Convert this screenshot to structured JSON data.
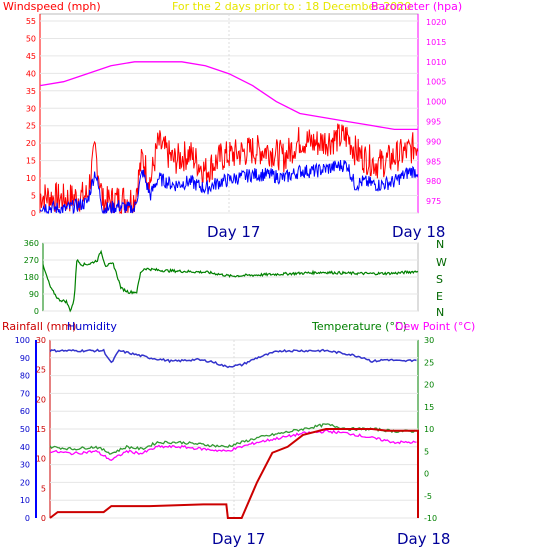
{
  "top_panel": {
    "left_label": "Windspeed (mph)",
    "center_label": "For the 2 days prior to : 18 December 2020",
    "right_label": "Barometer (hpa)",
    "left_ticks": [
      "0",
      "5",
      "10",
      "15",
      "20",
      "25",
      "30",
      "35",
      "40",
      "45",
      "50",
      "55"
    ],
    "right_ticks": [
      "975",
      "980",
      "985",
      "990",
      "995",
      "1000",
      "1005",
      "1010",
      "1015",
      "1020"
    ],
    "day_labels": [
      "Day 17",
      "Day 18"
    ]
  },
  "middle_panel": {
    "left_ticks": [
      "0",
      "90",
      "180",
      "270",
      "360"
    ],
    "compass": [
      "N",
      "W",
      "S",
      "E",
      "N"
    ]
  },
  "bottom_panel": {
    "rainfall_label": "Rainfall (mm)",
    "humidity_label": "Humidity",
    "temperature_label": "Temperature (°C)",
    "dewpoint_label": "Dew Point (°C)",
    "humidity_ticks": [
      "0",
      "10",
      "20",
      "30",
      "40",
      "50",
      "60",
      "70",
      "80",
      "90",
      "100"
    ],
    "rain_ticks": [
      "0",
      "5",
      "10",
      "15",
      "20",
      "25",
      "30"
    ],
    "temp_ticks": [
      "-10",
      "-5",
      "0",
      "5",
      "10",
      "15",
      "20",
      "25",
      "30"
    ],
    "day_labels": [
      "Day 17",
      "Day 18"
    ]
  },
  "colors": {
    "wind_speed": "#ff0000",
    "wind_gust_avg": "#0000ff",
    "barometer": "#ff00ff",
    "direction": "#008000",
    "humidity": "#3333cc",
    "temperature": "#339933",
    "dewpoint": "#ff00ff",
    "rainfall": "#cc0000",
    "left_axis_text": "#ff0000",
    "title_text": "#ffff00"
  },
  "chart_data": [
    {
      "type": "line",
      "x_range_hours": [
        0,
        48
      ],
      "series": [
        {
          "key": "gust",
          "values": [
            [
              0,
              5
            ],
            [
              3,
              4
            ],
            [
              6,
              5
            ],
            [
              7,
              18
            ],
            [
              8,
              3
            ],
            [
              10,
              4
            ],
            [
              12,
              4
            ],
            [
              13,
              16
            ],
            [
              14,
              9
            ],
            [
              15,
              20
            ],
            [
              17,
              15
            ],
            [
              19,
              17
            ],
            [
              21,
              12
            ],
            [
              23,
              16
            ],
            [
              25,
              17
            ],
            [
              27,
              18
            ],
            [
              29,
              18
            ],
            [
              31,
              16
            ],
            [
              33,
              21
            ],
            [
              35,
              20
            ],
            [
              37,
              21
            ],
            [
              39,
              22
            ],
            [
              40,
              18
            ],
            [
              41,
              16
            ],
            [
              43,
              14
            ],
            [
              45,
              16
            ],
            [
              47,
              18
            ],
            [
              48,
              20
            ]
          ]
        },
        {
          "key": "avg",
          "values": [
            [
              0,
              2
            ],
            [
              3,
              1
            ],
            [
              6,
              3
            ],
            [
              7,
              12
            ],
            [
              8,
              1
            ],
            [
              10,
              2
            ],
            [
              12,
              1
            ],
            [
              13,
              12
            ],
            [
              14,
              5
            ],
            [
              15,
              10
            ],
            [
              17,
              8
            ],
            [
              19,
              9
            ],
            [
              21,
              7
            ],
            [
              23,
              9
            ],
            [
              25,
              10
            ],
            [
              27,
              11
            ],
            [
              29,
              11
            ],
            [
              31,
              10
            ],
            [
              33,
              12
            ],
            [
              35,
              12
            ],
            [
              37,
              13
            ],
            [
              39,
              14
            ],
            [
              40,
              8
            ],
            [
              41,
              9
            ],
            [
              43,
              8
            ],
            [
              45,
              9
            ],
            [
              47,
              12
            ],
            [
              48,
              12
            ]
          ]
        },
        {
          "key": "baro",
          "values": [
            [
              0,
              1004
            ],
            [
              3,
              1005
            ],
            [
              6,
              1007
            ],
            [
              9,
              1009
            ],
            [
              12,
              1010
            ],
            [
              15,
              1010
            ],
            [
              18,
              1010
            ],
            [
              21,
              1009
            ],
            [
              24,
              1007
            ],
            [
              27,
              1004
            ],
            [
              30,
              1000
            ],
            [
              33,
              997
            ],
            [
              36,
              996
            ],
            [
              39,
              995
            ],
            [
              42,
              994
            ],
            [
              45,
              993
            ],
            [
              48,
              993
            ]
          ]
        }
      ],
      "ylim_left": [
        0,
        57
      ],
      "ylim_right": [
        972,
        1022
      ]
    },
    {
      "type": "line",
      "x_range_hours": [
        0,
        48
      ],
      "series": [
        {
          "key": "dir",
          "values": [
            [
              0,
              240
            ],
            [
              1,
              120
            ],
            [
              2,
              60
            ],
            [
              3,
              50
            ],
            [
              3.5,
              0
            ],
            [
              4,
              60
            ],
            [
              4.3,
              270
            ],
            [
              5,
              245
            ],
            [
              6,
              250
            ],
            [
              7,
              270
            ],
            [
              7.4,
              320
            ],
            [
              8,
              240
            ],
            [
              9,
              250
            ],
            [
              10,
              120
            ],
            [
              11,
              100
            ],
            [
              12,
              100
            ],
            [
              12.5,
              205
            ],
            [
              13,
              225
            ],
            [
              15,
              215
            ],
            [
              18,
              210
            ],
            [
              21,
              205
            ],
            [
              24,
              185
            ],
            [
              27,
              190
            ],
            [
              30,
              195
            ],
            [
              33,
              200
            ],
            [
              36,
              205
            ],
            [
              39,
              200
            ],
            [
              42,
              198
            ],
            [
              45,
              200
            ],
            [
              48,
              210
            ]
          ]
        }
      ],
      "ylim": [
        0,
        360
      ]
    },
    {
      "type": "line",
      "x_range_hours": [
        0,
        48
      ],
      "series": [
        {
          "key": "humidity",
          "values": [
            [
              0,
              94
            ],
            [
              7,
              94
            ],
            [
              8,
              87
            ],
            [
              9,
              94
            ],
            [
              11,
              92
            ],
            [
              13,
              90
            ],
            [
              16,
              88
            ],
            [
              19,
              89
            ],
            [
              21,
              88
            ],
            [
              23,
              85
            ],
            [
              25,
              86
            ],
            [
              27,
              90
            ],
            [
              30,
              94
            ],
            [
              33,
              94
            ],
            [
              36,
              94
            ],
            [
              39,
              92
            ],
            [
              41,
              90
            ],
            [
              42,
              88
            ],
            [
              44,
              89
            ],
            [
              46,
              88
            ],
            [
              48,
              89
            ]
          ]
        },
        {
          "key": "temp",
          "values": [
            [
              0,
              6
            ],
            [
              3,
              5.5
            ],
            [
              6,
              6
            ],
            [
              8,
              4.5
            ],
            [
              10,
              6
            ],
            [
              12,
              5.5
            ],
            [
              14,
              7
            ],
            [
              17,
              7
            ],
            [
              20,
              6.5
            ],
            [
              23,
              6
            ],
            [
              25,
              7
            ],
            [
              27,
              8
            ],
            [
              30,
              9
            ],
            [
              33,
              10
            ],
            [
              36,
              11
            ],
            [
              39,
              10
            ],
            [
              42,
              10
            ],
            [
              45,
              9.5
            ],
            [
              48,
              9.5
            ]
          ]
        },
        {
          "key": "dewpoint",
          "values": [
            [
              0,
              5
            ],
            [
              3,
              4.5
            ],
            [
              6,
              5
            ],
            [
              8,
              3
            ],
            [
              10,
              5
            ],
            [
              12,
              4.5
            ],
            [
              14,
              6
            ],
            [
              17,
              6
            ],
            [
              20,
              5.5
            ],
            [
              23,
              5
            ],
            [
              25,
              6
            ],
            [
              27,
              7
            ],
            [
              30,
              8
            ],
            [
              33,
              9
            ],
            [
              36,
              9.5
            ],
            [
              39,
              9
            ],
            [
              42,
              8
            ],
            [
              45,
              7
            ],
            [
              48,
              7
            ]
          ]
        },
        {
          "key": "rain",
          "values": [
            [
              0,
              0
            ],
            [
              1,
              1
            ],
            [
              7,
              1
            ],
            [
              8,
              2
            ],
            [
              13,
              2
            ],
            [
              20,
              2.3
            ],
            [
              23,
              2.3
            ],
            [
              23.2,
              0
            ],
            [
              25,
              0
            ],
            [
              27,
              6
            ],
            [
              29,
              11
            ],
            [
              31,
              12
            ],
            [
              33,
              14
            ],
            [
              36,
              15
            ],
            [
              39,
              15
            ],
            [
              42,
              15
            ],
            [
              44,
              14.7
            ],
            [
              48,
              14.7
            ],
            [
              48,
              0
            ]
          ]
        }
      ],
      "ylim_humidity": [
        0,
        100
      ],
      "ylim_rain": [
        0,
        30
      ],
      "ylim_temp": [
        -10,
        30
      ]
    }
  ]
}
